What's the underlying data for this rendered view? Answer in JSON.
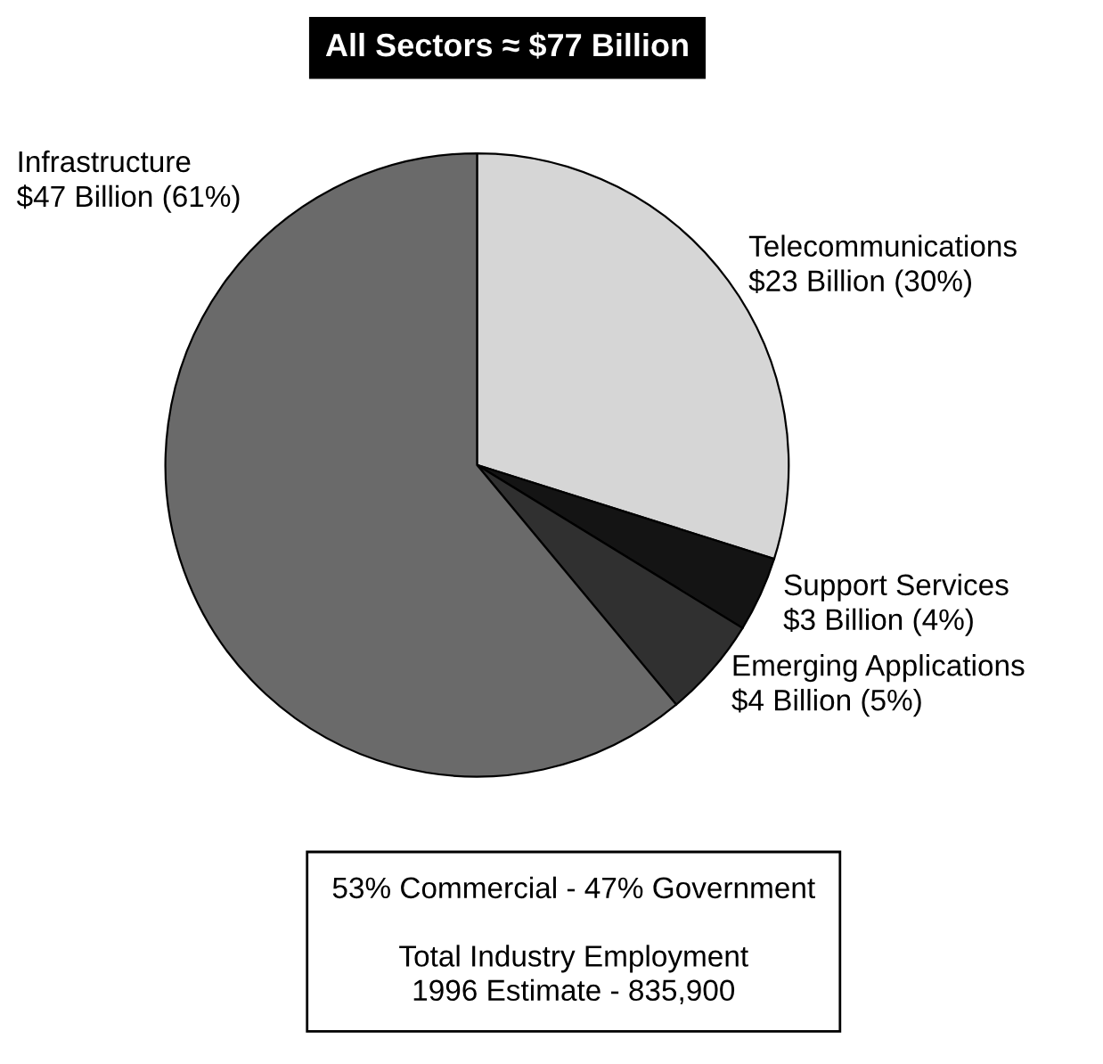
{
  "chart_data": {
    "type": "pie",
    "title": "All Sectors ≈ $77 Billion",
    "categories": [
      "Telecommunications",
      "Support Services",
      "Emerging Applications",
      "Infrastructure"
    ],
    "values": [
      23,
      3,
      4,
      47
    ],
    "value_labels": [
      "$23 Billion (30%)",
      "$3 Billion (4%)",
      "$4 Billion (5%)",
      "$47 Billion (61%)"
    ],
    "colors": [
      "#d6d6d6",
      "#141414",
      "#303030",
      "#6a6a6a"
    ],
    "annotations": [
      "53% Commercial - 47% Government",
      "Total Industry Employment\n1996 Estimate - 835,900"
    ]
  }
}
